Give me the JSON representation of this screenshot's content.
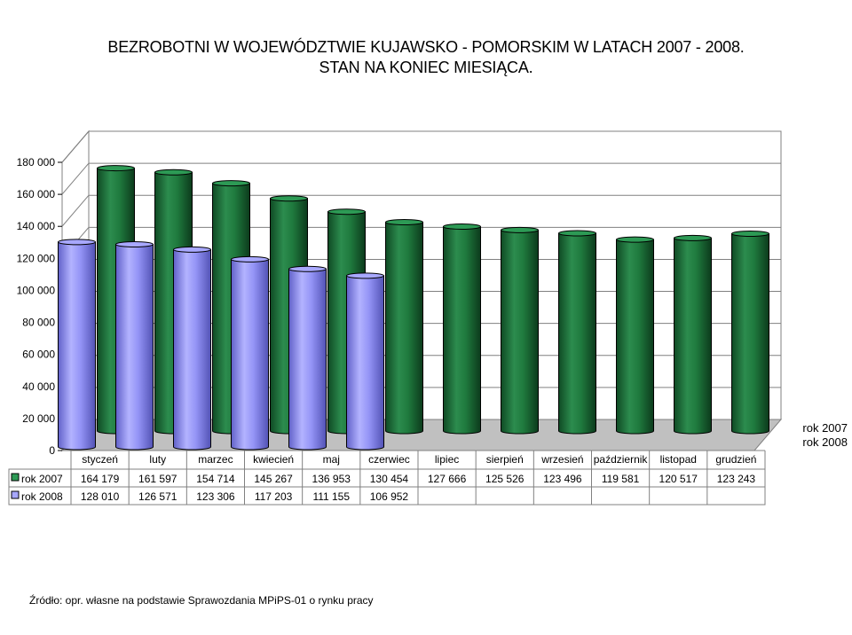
{
  "title_line1": "BEZROBOTNI W WOJEWÓDZTWIE KUJAWSKO - POMORSKIM W LATACH 2007 - 2008.",
  "title_line2": "STAN NA KONIEC MIESIĄCA.",
  "source": "Źródło: opr. własne na podstawie Sprawozdania MPiPS-01 o rynku pracy",
  "colors": {
    "series_2007": "#1f7a3e",
    "series_2008": "#8e8ef5",
    "grid": "#808080"
  },
  "chart_data": {
    "type": "bar",
    "style": "3d-cylinder",
    "ylim": [
      0,
      180000
    ],
    "yticks": [
      0,
      20000,
      40000,
      60000,
      80000,
      100000,
      120000,
      140000,
      160000,
      180000
    ],
    "ytick_labels": [
      "0",
      "20 000",
      "40 000",
      "60 000",
      "80 000",
      "100 000",
      "120 000",
      "140 000",
      "160 000",
      "180 000"
    ],
    "categories": [
      "styczeń",
      "luty",
      "marzec",
      "kwiecień",
      "maj",
      "czerwiec",
      "lipiec",
      "sierpień",
      "wrzesień",
      "październik",
      "listopad",
      "grudzień"
    ],
    "series": [
      {
        "name": "rok 2007",
        "values": [
          164179,
          161597,
          154714,
          145267,
          136953,
          130454,
          127666,
          125526,
          123496,
          119581,
          120517,
          123243
        ],
        "labels": [
          "164 179",
          "161 597",
          "154 714",
          "145 267",
          "136 953",
          "130 454",
          "127 666",
          "125 526",
          "123 496",
          "119 581",
          "120 517",
          "123 243"
        ]
      },
      {
        "name": "rok 2008",
        "values": [
          128010,
          126571,
          123306,
          117203,
          111155,
          106952,
          null,
          null,
          null,
          null,
          null,
          null
        ],
        "labels": [
          "128 010",
          "126 571",
          "123 306",
          "117 203",
          "111 155",
          "106 952",
          "",
          "",
          "",
          "",
          "",
          ""
        ]
      }
    ],
    "legend": [
      "rok 2007",
      "rok 2008"
    ],
    "legend_position": "right",
    "data_table": true,
    "grid": true
  }
}
